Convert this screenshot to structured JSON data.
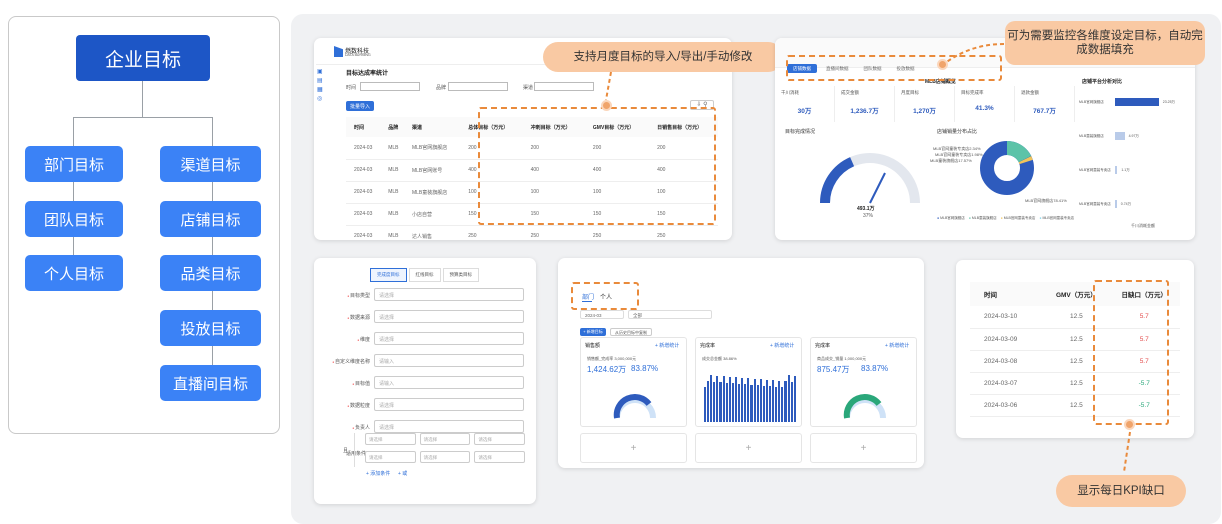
{
  "org_tree": {
    "root": "企业目标",
    "column1": [
      "部门目标",
      "团队目标",
      "个人目标"
    ],
    "column2": [
      "渠道目标",
      "店铺目标",
      "品类目标",
      "投放目标",
      "直播间目标"
    ]
  },
  "callouts": {
    "import_export": "支持月度目标的导入/导出/手动修改",
    "multi_dim": "可为需要监控各维度设定目标，自动完成数据填充",
    "daily_kpi": "显示每日KPI缺口"
  },
  "target_stats": {
    "logo": "燃数科技",
    "logo_sub": "DATA BURNING",
    "title": "目标达成率统计",
    "filter_time": "时间",
    "filter_brand": "品牌",
    "filter_channel": "渠道",
    "import_btn": "批量导入",
    "columns": [
      "时间",
      "品牌",
      "渠道",
      "总体目标（万元）",
      "冲刺目标（万元）",
      "GMV目标（万元）",
      "日销售目标（万元）"
    ],
    "rows": [
      [
        "2024-03",
        "MLB",
        "MLB官网旗舰店",
        "200",
        "200",
        "200",
        "200"
      ],
      [
        "2024-03",
        "MLB",
        "MLB官网账号",
        "400",
        "400",
        "400",
        "400"
      ],
      [
        "2024-03",
        "MLB",
        "MLB童装旗舰店",
        "100",
        "100",
        "100",
        "100"
      ],
      [
        "2024-03",
        "MLB",
        "小店自营",
        "150",
        "150",
        "150",
        "150"
      ],
      [
        "2024-03",
        "MLB",
        "达人销售",
        "250",
        "250",
        "250",
        "250"
      ]
    ]
  },
  "dashboard": {
    "tabs": [
      "店铺数据",
      "直播间数据",
      "团队数据",
      "投放数据"
    ],
    "section_title": "MLB店铺概览",
    "right_title": "店铺平台分析对比",
    "metrics": [
      {
        "label": "千川消耗",
        "value": "30万"
      },
      {
        "label": "成交金额",
        "value": "1,236.7万"
      },
      {
        "label": "月度目标",
        "value": "1,270万"
      },
      {
        "label": "目标完成率",
        "value": "41.3%"
      },
      {
        "label": "退款金额",
        "value": "767.7万"
      }
    ],
    "gauge_title": "目标完成情况",
    "gauge_value": "493.1万",
    "gauge_pct": "37%",
    "pie_title": "店铺销量分布占比",
    "pie_labels": [
      "MLB官网童装专卖店2.34%",
      "MLB官网童装专卖店1.98%",
      "MLB童装旗舰店17.57%",
      "MLB官网旗舰店78.41%"
    ],
    "bar_labels": [
      "MLB官网旗舰店",
      "MLB童装旗舰店",
      "MLB官网童装专卖店",
      "MLB官网童装专卖店"
    ],
    "bar_values": [
      "23.25万",
      "4.97万",
      "1.1万",
      "0.74万"
    ],
    "bar_fractions": [
      0.73,
      0.16,
      0.04,
      0.03
    ],
    "bar_axis": "千川消耗金额",
    "pie_legend": [
      "MLB官网旗舰店",
      "MLB童装旗舰店",
      "MLB官网童装专卖店",
      "MLB官网童装专卖店"
    ],
    "pie_colors": [
      "#2e5bbd",
      "#5cc3a8",
      "#f0c45c",
      "#7bd3e8"
    ]
  },
  "form": {
    "tabs": [
      "完成度目标",
      "红线目标",
      "预算类目标"
    ],
    "placeholder_select": "请选择",
    "placeholder_input": "请输入",
    "fields": [
      "目标类型",
      "数据来源",
      "维度",
      "自定义维度名称",
      "目标值",
      "数据粒度",
      "负责人",
      "适用条件"
    ],
    "footer_add": "+ 添加条件",
    "footer_or": "+ 或",
    "or_label": "且"
  },
  "goals": {
    "tabs": [
      "部门",
      "个人"
    ],
    "date": "2024-03",
    "filter": "全部",
    "add_btn": "+ 新增目标",
    "pull_btn": "从历史目标中复制",
    "panels": [
      {
        "title": "销售额",
        "label": "销售额_完成率 3,000,000元",
        "value": "1,424.62万",
        "rate": "83.87%",
        "link": "+ 新增统计"
      },
      {
        "title": "完成率",
        "label": "成交总金额 38.86%",
        "value": "",
        "rate": "",
        "link": "+ 新增统计"
      },
      {
        "title": "完成率",
        "label": "商品成交_销量 1,000,000元",
        "value": "875.47万",
        "rate": "83.87%",
        "link": "+ 新增统计"
      }
    ],
    "plus": "+"
  },
  "kpi": {
    "columns": [
      "时间",
      "GMV（万元）",
      "日缺口（万元）"
    ],
    "rows": [
      [
        "2024-03-10",
        "12.5",
        "5.7"
      ],
      [
        "2024-03-09",
        "12.5",
        "5.7"
      ],
      [
        "2024-03-08",
        "12.5",
        "5.7"
      ],
      [
        "2024-03-07",
        "12.5",
        "-5.7"
      ],
      [
        "2024-03-06",
        "12.5",
        "-5.7"
      ]
    ],
    "gap_colors": [
      "#e34d4d",
      "#e34d4d",
      "#e34d4d",
      "#2aa77a",
      "#2aa77a"
    ]
  }
}
